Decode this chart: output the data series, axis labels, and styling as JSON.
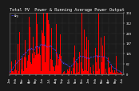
{
  "title": "Total PV  Power & Running Average Power Output",
  "background_color": "#1a1a1a",
  "plot_bg_color": "#1a1a1a",
  "bar_color": "#ff0000",
  "line_color": "#4444ff",
  "grid_color": "#555555",
  "y_tick_labels": [
    "374",
    "281",
    "187",
    "94",
    "9.4",
    "0"
  ],
  "y_max": 374,
  "y_min": 0,
  "title_fontsize": 3.8,
  "tick_fontsize": 2.8,
  "legend_label": "Avg",
  "n_bars": 200
}
